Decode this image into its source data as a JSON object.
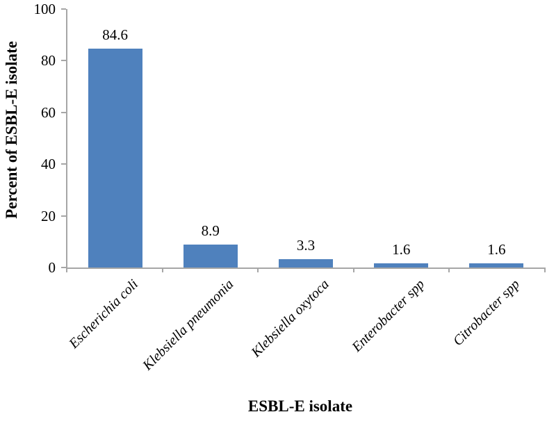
{
  "chart_data": {
    "type": "bar",
    "title": "",
    "categories": [
      "Escherichia coli",
      "Klebsiella pneumonia",
      "Klebsiella oxytoca",
      "Enterobacter spp",
      "Citrobacter spp"
    ],
    "values": [
      84.6,
      8.9,
      3.3,
      1.6,
      1.6
    ],
    "value_labels": [
      "84.6",
      "8.9",
      "3.3",
      "1.6",
      "1.6"
    ],
    "xlabel": "ESBL-E isolate",
    "ylabel": "Percent of ESBL-E isolate",
    "ylim": [
      0,
      100
    ],
    "yticks": [
      0,
      20,
      40,
      60,
      80,
      100
    ],
    "ytick_labels": [
      "0",
      "20",
      "40",
      "60",
      "80",
      "100"
    ],
    "grid": false,
    "legend": "none",
    "bar_color": "#4F81BD",
    "axis_color": "#A6A6A6",
    "text_color": "#000000",
    "background_color": "#FFFFFF",
    "category_label_style": "italic, rotated 45 degrees"
  }
}
